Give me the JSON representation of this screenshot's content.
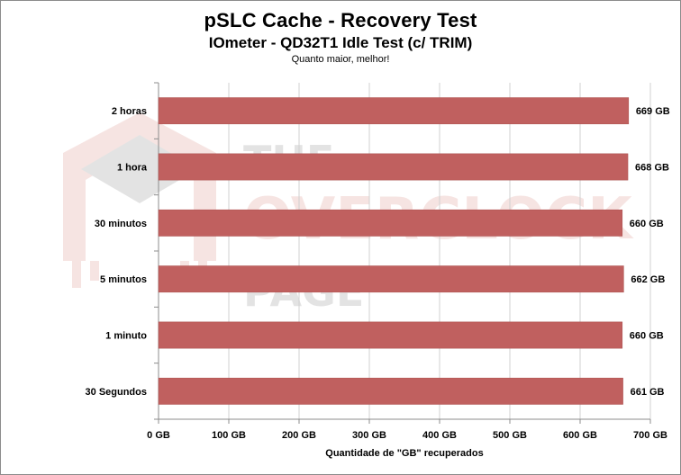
{
  "chart_data": {
    "type": "bar",
    "orientation": "horizontal",
    "title": "pSLC Cache - Recovery Test",
    "subtitle": "IOmeter - QD32T1 Idle Test (c/ TRIM)",
    "note": "Quanto maior, melhor!",
    "xlabel": "Quantidade de \"GB\" recuperados",
    "categories": [
      "2 horas",
      "1 hora",
      "30 minutos",
      "5 minutos",
      "1 minuto",
      "30 Segundos"
    ],
    "values": [
      669,
      668,
      660,
      662,
      660,
      661
    ],
    "value_labels": [
      "669 GB",
      "668 GB",
      "660 GB",
      "662 GB",
      "660 GB",
      "661 GB"
    ],
    "xlim": [
      0,
      700
    ],
    "xticks": [
      0,
      100,
      200,
      300,
      400,
      500,
      600,
      700
    ],
    "xtick_labels": [
      "0 GB",
      "100 GB",
      "200 GB",
      "300 GB",
      "400 GB",
      "500 GB",
      "600 GB",
      "700 GB"
    ],
    "grid": "vertical",
    "legend": "none",
    "bar_color": "#c0605f"
  },
  "watermark": {
    "line1": "THE",
    "line2": "OVERCLOCK",
    "line3": "PAGE"
  }
}
